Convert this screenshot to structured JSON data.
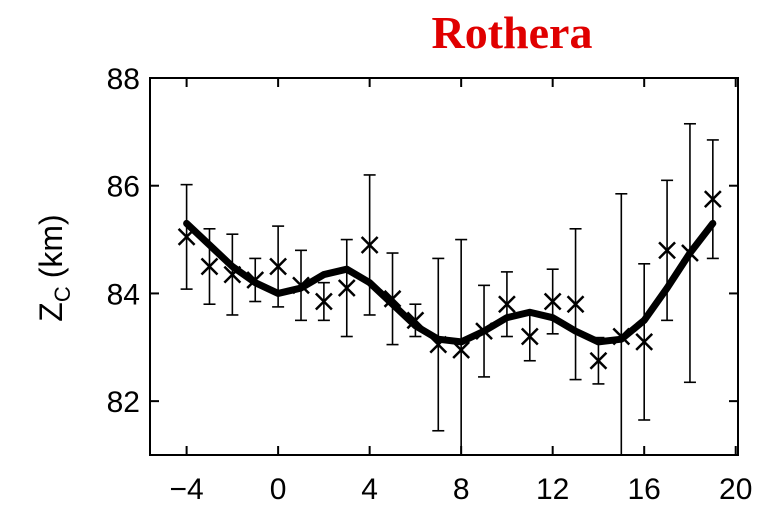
{
  "chart_data": {
    "type": "errorbar",
    "title": "Rothera",
    "title_color": "#e00000",
    "y_label": "Z",
    "y_label_sub": "C",
    "y_label_unit": "(km)",
    "x": [
      -4,
      -3,
      -2,
      -1,
      0,
      1,
      2,
      3,
      4,
      5,
      6,
      7,
      8,
      9,
      10,
      11,
      12,
      13,
      14,
      15,
      16,
      17,
      18,
      19
    ],
    "values": [
      85.05,
      84.5,
      84.35,
      84.25,
      84.5,
      84.15,
      83.85,
      84.1,
      84.9,
      83.9,
      83.5,
      83.05,
      82.95,
      83.3,
      83.8,
      83.2,
      83.85,
      83.8,
      82.75,
      83.2,
      83.1,
      84.8,
      84.75,
      85.75
    ],
    "errors": [
      0.97,
      0.7,
      0.75,
      0.4,
      0.75,
      0.65,
      0.35,
      0.9,
      1.3,
      0.85,
      0.3,
      1.6,
      2.05,
      0.85,
      0.6,
      0.45,
      0.6,
      1.4,
      0.43,
      2.65,
      1.45,
      1.3,
      2.4,
      1.1
    ],
    "fit_values": [
      85.3,
      84.9,
      84.5,
      84.2,
      84.0,
      84.1,
      84.35,
      84.45,
      84.2,
      83.8,
      83.4,
      83.15,
      83.1,
      83.3,
      83.55,
      83.65,
      83.55,
      83.3,
      83.1,
      83.15,
      83.5,
      84.1,
      84.75,
      85.3
    ],
    "color": "#000000",
    "xlim": [
      -5.6,
      20.1
    ],
    "ylim": [
      81,
      88
    ],
    "xticks": [
      {
        "value": -4,
        "label": "−4"
      },
      0,
      4,
      8,
      12,
      16,
      20
    ],
    "yticks": [
      82,
      84,
      86,
      88
    ]
  }
}
